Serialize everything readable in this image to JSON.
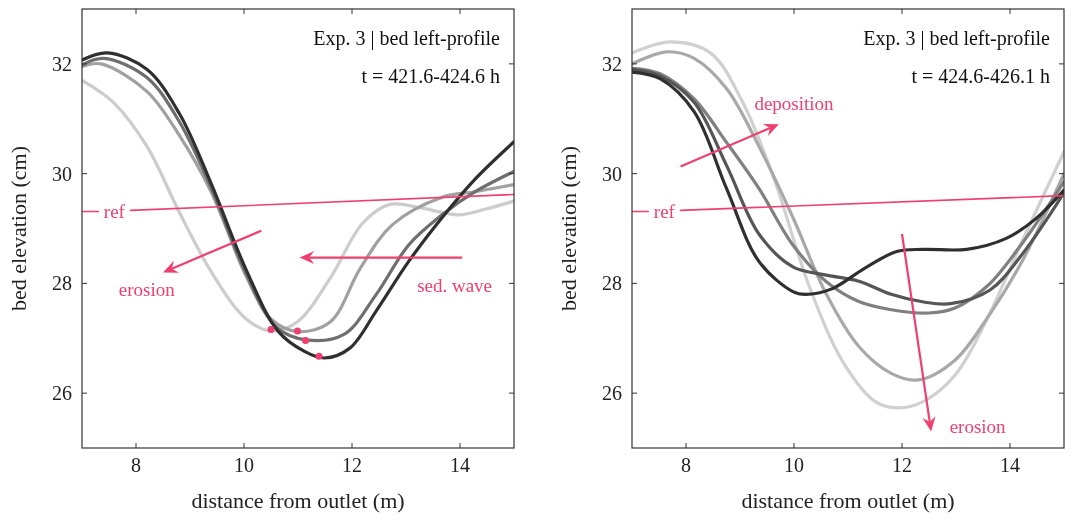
{
  "chart_data": [
    {
      "type": "line",
      "title": "Exp. 3 | bed left-profile",
      "subtitle": "t = 421.6-424.6 h",
      "xlabel": "distance from outlet (m)",
      "ylabel": "bed elevation (cm)",
      "xlim": [
        7,
        15
      ],
      "ylim": [
        25,
        33
      ],
      "xticks": [
        8,
        10,
        12,
        14
      ],
      "yticks": [
        26,
        28,
        30,
        32
      ],
      "series": [
        {
          "color": "#cccccc",
          "x": [
            7,
            7.58,
            8.2,
            8.8,
            9.4,
            10.03,
            10.5,
            10.99,
            11.6,
            12.2,
            12.7,
            13.3,
            13.97,
            14.46,
            15
          ],
          "values": [
            31.7,
            31.3,
            30.5,
            29.3,
            28.2,
            27.36,
            27.13,
            27.3,
            28.1,
            29.1,
            29.44,
            29.37,
            29.25,
            29.35,
            29.5
          ]
        },
        {
          "color": "#a0a0a0",
          "x": [
            7,
            7.35,
            8.2,
            8.8,
            9.4,
            10.03,
            10.5,
            11.0,
            11.6,
            12.15,
            12.75,
            13.67,
            14.28,
            15
          ],
          "values": [
            31.95,
            32.0,
            31.5,
            30.7,
            29.65,
            28.15,
            27.35,
            27.12,
            27.3,
            28.27,
            29.07,
            29.57,
            29.67,
            29.8
          ]
        },
        {
          "color": "#6e6e6e",
          "x": [
            7,
            7.4,
            8.2,
            8.8,
            9.4,
            10.03,
            10.6,
            11.15,
            11.85,
            12.45,
            13.05,
            13.67,
            14.28,
            15
          ],
          "values": [
            31.98,
            32.1,
            31.75,
            30.95,
            29.72,
            28.2,
            27.2,
            26.97,
            27.07,
            27.8,
            28.7,
            29.25,
            29.67,
            30.04
          ]
        },
        {
          "color": "#2f2f2f",
          "x": [
            7,
            7.47,
            8.2,
            8.8,
            9.4,
            10.03,
            10.63,
            11.12,
            11.49,
            11.96,
            12.45,
            13.05,
            13.67,
            14.28,
            15
          ],
          "values": [
            32.07,
            32.2,
            31.9,
            31.1,
            29.8,
            28.27,
            27.13,
            26.76,
            26.64,
            26.82,
            27.5,
            28.4,
            29.2,
            29.9,
            30.58
          ]
        },
        {
          "type": "scatter",
          "color": "#ee3f6f",
          "x": [
            10.5,
            10.99,
            11.14,
            11.39
          ],
          "values": [
            27.16,
            27.13,
            26.96,
            26.67
          ]
        },
        {
          "name": "ref",
          "color": "#ee3f6f",
          "x": [
            7,
            7.3,
            7.6,
            7.9,
            15
          ],
          "values": [
            29.31,
            29.31,
            null,
            29.33,
            29.62
          ]
        }
      ],
      "annotations": [
        "erosion",
        "sed. wave"
      ]
    },
    {
      "type": "line",
      "title": "Exp. 3 | bed left-profile",
      "subtitle": "t = 424.6-426.1 h",
      "xlabel": "distance from outlet (m)",
      "ylabel": "bed elevation (cm)",
      "xlim": [
        7,
        15
      ],
      "ylim": [
        25,
        33
      ],
      "xticks": [
        8,
        10,
        12,
        14
      ],
      "yticks": [
        26,
        28,
        30,
        32
      ],
      "series": [
        {
          "color": "#d0d0d0",
          "x": [
            7,
            7.7,
            8.45,
            9.05,
            9.65,
            10.27,
            10.9,
            11.5,
            11.92,
            12.4,
            13.0,
            13.6,
            14.24,
            15
          ],
          "values": [
            32.2,
            32.4,
            32.2,
            31.3,
            29.85,
            27.98,
            26.58,
            25.85,
            25.73,
            25.85,
            26.35,
            27.4,
            28.8,
            30.4
          ]
        },
        {
          "color": "#a8a8a8",
          "x": [
            7,
            7.65,
            8.15,
            8.75,
            9.35,
            9.98,
            10.6,
            11.2,
            11.8,
            12.3,
            12.98,
            13.6,
            14.24,
            15
          ],
          "values": [
            32.0,
            32.22,
            32.1,
            31.55,
            30.5,
            29.2,
            27.8,
            26.85,
            26.36,
            26.24,
            26.6,
            27.4,
            28.43,
            30.0
          ]
        },
        {
          "color": "#808080",
          "x": [
            7,
            7.52,
            8.15,
            8.75,
            9.35,
            9.98,
            10.6,
            11.2,
            11.8,
            12.5,
            12.98,
            13.6,
            14.24,
            15
          ],
          "values": [
            31.92,
            31.82,
            31.36,
            30.57,
            29.73,
            28.7,
            28.03,
            27.67,
            27.52,
            27.46,
            27.55,
            27.97,
            28.75,
            29.85
          ]
        },
        {
          "color": "#555555",
          "x": [
            7,
            7.52,
            8.15,
            8.75,
            9.35,
            9.98,
            10.6,
            11.2,
            11.8,
            12.4,
            12.9,
            13.63,
            14.24,
            15
          ],
          "values": [
            31.9,
            31.78,
            31.3,
            30.15,
            28.9,
            28.3,
            28.15,
            28.04,
            27.8,
            27.66,
            27.63,
            27.88,
            28.55,
            29.65
          ]
        },
        {
          "color": "#2f2f2f",
          "x": [
            7,
            7.52,
            8.15,
            8.75,
            9.35,
            9.98,
            10.21,
            10.7,
            11.3,
            11.9,
            12.4,
            13.2,
            13.93,
            14.48,
            15
          ],
          "values": [
            31.85,
            31.73,
            31.13,
            29.73,
            28.4,
            27.85,
            27.8,
            27.9,
            28.27,
            28.58,
            28.62,
            28.62,
            28.82,
            29.18,
            29.7
          ]
        },
        {
          "name": "ref",
          "color": "#ee3f6f",
          "x": [
            7,
            7.3,
            7.6,
            7.9,
            15
          ],
          "values": [
            29.31,
            29.31,
            null,
            29.33,
            29.6
          ]
        }
      ],
      "annotations": [
        "deposition",
        "erosion"
      ]
    }
  ]
}
